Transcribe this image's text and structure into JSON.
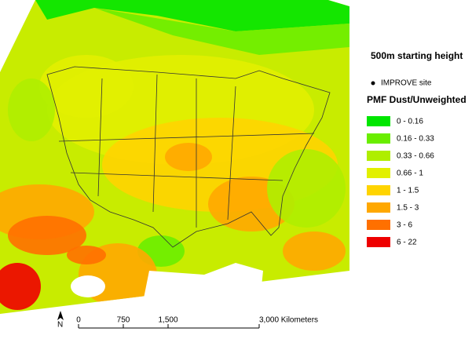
{
  "title": "500m starting height",
  "site_legend": {
    "label": "IMPROVE site"
  },
  "legend": {
    "title": "PMF Dust/Unweighted",
    "classes": [
      {
        "label": "0 - 0.16",
        "color": "#00e600"
      },
      {
        "label": "0.16 - 0.33",
        "color": "#6aee00"
      },
      {
        "label": "0.33 - 0.66",
        "color": "#afee00"
      },
      {
        "label": "0.66 - 1",
        "color": "#e2f000"
      },
      {
        "label": "1 - 1.5",
        "color": "#ffd400"
      },
      {
        "label": "1.5 - 3",
        "color": "#ffa800"
      },
      {
        "label": "3 - 6",
        "color": "#ff7000"
      },
      {
        "label": "6 - 22",
        "color": "#ee0000"
      }
    ]
  },
  "north_arrow": "N",
  "scale_bar": {
    "labels": [
      "0",
      "750",
      "1,500",
      "3,000 Kilometers"
    ]
  }
}
